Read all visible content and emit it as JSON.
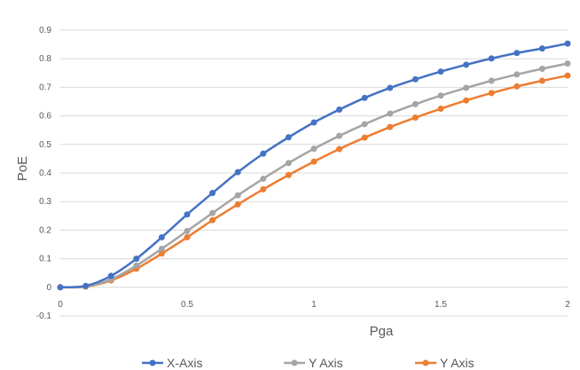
{
  "chart_data": {
    "type": "line",
    "title": "",
    "xlabel": "Pga",
    "ylabel": "PoE",
    "xlim": [
      0,
      2
    ],
    "ylim": [
      -0.1,
      0.9
    ],
    "x_ticks": [
      "0",
      "0.5",
      "1",
      "1.5",
      "2"
    ],
    "y_ticks": [
      "-0.1",
      "0",
      "0.1",
      "0.2",
      "0.3",
      "0.4",
      "0.5",
      "0.6",
      "0.7",
      "0.8",
      "0.9"
    ],
    "grid": "horizontal",
    "legend_position": "bottom",
    "x": [
      0,
      0.1,
      0.2,
      0.3,
      0.4,
      0.5,
      0.6,
      0.7,
      0.8,
      0.9,
      1.0,
      1.1,
      1.2,
      1.3,
      1.4,
      1.5,
      1.6,
      1.7,
      1.8,
      1.9,
      2.0
    ],
    "series": [
      {
        "name": "X-Axis",
        "color": "#4472c4",
        "values": [
          0,
          0.005,
          0.04,
          0.1,
          0.175,
          0.255,
          0.33,
          0.403,
          0.468,
          0.525,
          0.577,
          0.622,
          0.663,
          0.698,
          0.728,
          0.755,
          0.779,
          0.801,
          0.82,
          0.836,
          0.853
        ]
      },
      {
        "name": "Y Axis",
        "color": "#a5a5a5",
        "values": [
          0,
          0.003,
          0.028,
          0.076,
          0.135,
          0.197,
          0.26,
          0.322,
          0.38,
          0.435,
          0.485,
          0.53,
          0.571,
          0.608,
          0.641,
          0.671,
          0.698,
          0.723,
          0.745,
          0.765,
          0.783
        ]
      },
      {
        "name": "Y Axis",
        "color": "#ed7d31",
        "values": [
          0,
          0.002,
          0.024,
          0.065,
          0.118,
          0.175,
          0.235,
          0.29,
          0.343,
          0.393,
          0.44,
          0.484,
          0.524,
          0.561,
          0.594,
          0.625,
          0.654,
          0.68,
          0.703,
          0.723,
          0.741
        ]
      }
    ]
  }
}
